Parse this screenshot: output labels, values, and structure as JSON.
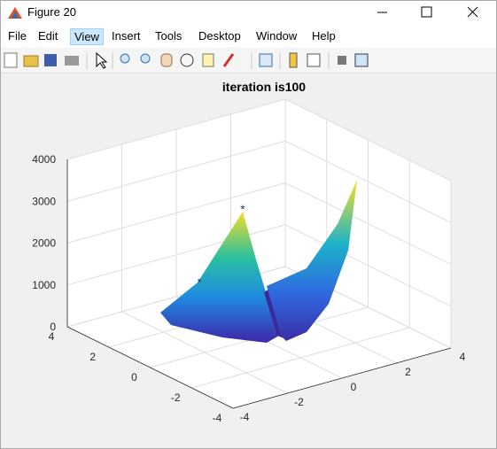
{
  "window": {
    "title": "Figure 20",
    "menu": [
      "File",
      "Edit",
      "View",
      "Insert",
      "Tools",
      "Desktop",
      "Window",
      "Help"
    ]
  },
  "chart_data": {
    "type": "surface",
    "title": "iteration is100",
    "xlim": [
      -4,
      4
    ],
    "ylim": [
      -4,
      4
    ],
    "zlim": [
      0,
      4000
    ],
    "xticks": [
      -4,
      -2,
      0,
      2,
      4
    ],
    "yticks": [
      -4,
      -2,
      0,
      2,
      4
    ],
    "zticks": [
      0,
      1000,
      2000,
      3000,
      4000
    ],
    "grid": true
  }
}
